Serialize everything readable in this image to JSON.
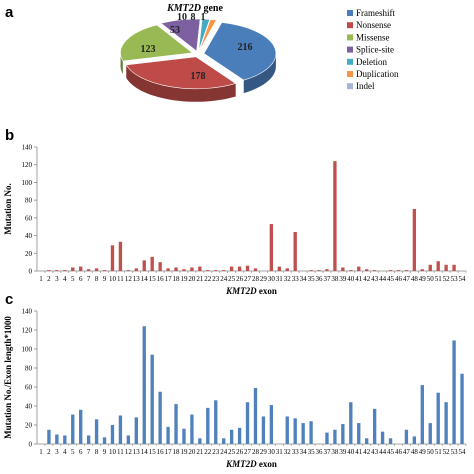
{
  "chart_data": [
    {
      "panel": "a",
      "type": "pie",
      "title_gene_italic": "KMT2D",
      "title_suffix": " gene",
      "categories": [
        "Frameshift",
        "Nonsense",
        "Missense",
        "Splice-site",
        "Deletion",
        "Duplication",
        "Indel"
      ],
      "values": [
        216,
        178,
        123,
        53,
        10,
        8,
        1
      ],
      "colors": [
        "#4a7ebb",
        "#be4b48",
        "#98b954",
        "#7d60a0",
        "#46aac5",
        "#f79646",
        "#a5b6d8"
      ],
      "legend_position": "right"
    },
    {
      "panel": "b",
      "type": "bar",
      "categories": [
        "1",
        "2",
        "3",
        "4",
        "5",
        "6",
        "7",
        "8",
        "9",
        "10",
        "11",
        "12",
        "13",
        "14",
        "15",
        "16",
        "17",
        "18",
        "19",
        "20",
        "21",
        "22",
        "23",
        "24",
        "25",
        "26",
        "27",
        "28",
        "29",
        "30",
        "31",
        "32",
        "33",
        "34",
        "35",
        "36",
        "37",
        "38",
        "39",
        "40",
        "41",
        "42",
        "43",
        "44",
        "45",
        "46",
        "47",
        "48",
        "49",
        "50",
        "51",
        "52",
        "53",
        "54"
      ],
      "values": [
        0,
        1,
        1,
        1,
        4,
        5,
        2,
        3,
        1,
        29,
        33,
        1,
        3,
        12,
        16,
        10,
        3,
        4,
        2,
        4,
        5,
        1,
        1,
        1,
        5,
        5,
        6,
        3,
        0,
        53,
        5,
        3,
        44,
        0,
        1,
        1,
        2,
        124,
        4,
        1,
        5,
        2,
        1,
        0,
        1,
        1,
        1,
        70,
        2,
        7,
        11,
        7,
        7,
        0
      ],
      "color": "#c0504d",
      "xlabel_italic": "KMT2D",
      "xlabel_suffix": " exon",
      "ylabel": "Mutation No.",
      "ylim": [
        0,
        140
      ],
      "yticks": [
        0,
        20,
        40,
        60,
        80,
        100,
        120,
        140
      ],
      "grid": false
    },
    {
      "panel": "c",
      "type": "bar",
      "categories": [
        "1",
        "2",
        "3",
        "4",
        "5",
        "6",
        "7",
        "8",
        "9",
        "10",
        "11",
        "12",
        "13",
        "14",
        "15",
        "16",
        "17",
        "18",
        "19",
        "20",
        "21",
        "22",
        "23",
        "24",
        "25",
        "26",
        "27",
        "28",
        "29",
        "30",
        "31",
        "32",
        "33",
        "34",
        "35",
        "36",
        "37",
        "38",
        "39",
        "40",
        "41",
        "42",
        "43",
        "44",
        "45",
        "46",
        "47",
        "48",
        "49",
        "50",
        "51",
        "52",
        "53",
        "54"
      ],
      "values": [
        0,
        15,
        10,
        9,
        31,
        36,
        9,
        26,
        7,
        20,
        30,
        9,
        28,
        124,
        94,
        55,
        18,
        42,
        16,
        31,
        6,
        38,
        46,
        6,
        15,
        17,
        44,
        59,
        29,
        41,
        0,
        29,
        27,
        22,
        24,
        0,
        12,
        15,
        21,
        44,
        22,
        6,
        37,
        13,
        6,
        0,
        15,
        8,
        62,
        22,
        54,
        44,
        109,
        74
      ],
      "color": "#4f81bd",
      "xlabel_italic": "KMT2D",
      "xlabel_suffix": " exon",
      "ylabel": "Mutation No./Exon length*1000",
      "ylim": [
        0,
        140
      ],
      "yticks": [
        0,
        20,
        40,
        60,
        80,
        100,
        120,
        140
      ],
      "grid": false
    }
  ]
}
